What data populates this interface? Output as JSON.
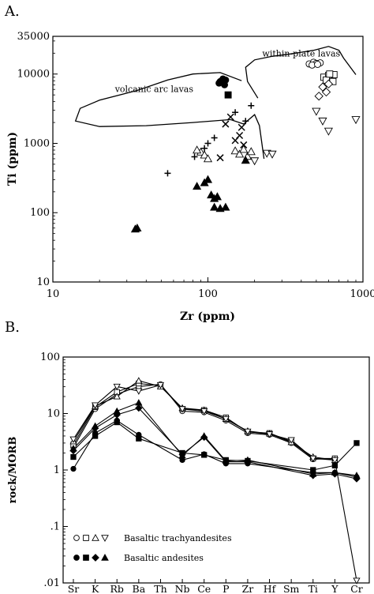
{
  "panels": {
    "a": {
      "label": "A."
    },
    "b": {
      "label": "B."
    }
  },
  "chart_data": [
    {
      "type": "scatter",
      "panel": "A.",
      "xlabel": "Zr (ppm)",
      "ylabel": "Ti (ppm)",
      "xscale": "log",
      "yscale": "log",
      "xlim": [
        10,
        1000
      ],
      "ylim": [
        10,
        35000
      ],
      "xticks": [
        {
          "v": 10,
          "label": "10"
        },
        {
          "v": 100,
          "label": "100"
        },
        {
          "v": 1000,
          "label": "1000"
        }
      ],
      "yticks": [
        {
          "v": 10,
          "label": "10"
        },
        {
          "v": 100,
          "label": "100"
        },
        {
          "v": 1000,
          "label": "1000"
        },
        {
          "v": 10000,
          "label": "10000"
        },
        {
          "v": 35000,
          "label": "35000"
        }
      ],
      "fields": [
        {
          "label": "within-plate lavas",
          "label_at": [
            400,
            18000
          ],
          "boundary": [
            [
              210,
              4500
            ],
            [
              180,
              7800
            ],
            [
              175,
              12500
            ],
            [
              200,
              16000
            ],
            [
              260,
              18000
            ],
            [
              340,
              19500
            ],
            [
              480,
              22000
            ],
            [
              600,
              25000
            ],
            [
              700,
              22000
            ],
            [
              750,
              17000
            ],
            [
              900,
              9800
            ]
          ]
        },
        {
          "label": "volcanic arc lavas",
          "label_at": [
            45,
            5500
          ],
          "boundary": [
            [
              165,
              8000
            ],
            [
              120,
              10500
            ],
            [
              80,
              10000
            ],
            [
              55,
              8200
            ],
            [
              35,
              5800
            ],
            [
              20,
              4200
            ],
            [
              15,
              3200
            ],
            [
              14,
              2100
            ],
            [
              20,
              1750
            ],
            [
              40,
              1800
            ],
            [
              80,
              2000
            ],
            [
              140,
              2200
            ],
            [
              170,
              1900
            ],
            [
              200,
              2600
            ],
            [
              215,
              1800
            ],
            [
              230,
              600
            ]
          ]
        }
      ],
      "series": [
        {
          "marker": "open-circle",
          "points": [
            [
              450,
              14000
            ],
            [
              480,
              14800
            ],
            [
              500,
              14200
            ],
            [
              530,
              14500
            ],
            [
              470,
              13500
            ],
            [
              510,
              13800
            ]
          ]
        },
        {
          "marker": "open-square",
          "points": [
            [
              560,
              9000
            ],
            [
              600,
              9500
            ],
            [
              620,
              8500
            ],
            [
              650,
              9800
            ],
            [
              580,
              8200
            ],
            [
              640,
              7800
            ],
            [
              610,
              10000
            ]
          ]
        },
        {
          "marker": "open-diamond",
          "points": [
            [
              550,
              6500
            ],
            [
              580,
              5500
            ],
            [
              520,
              4800
            ],
            [
              600,
              7200
            ]
          ]
        },
        {
          "marker": "open-triangle-up",
          "points": [
            [
              90,
              750
            ],
            [
              95,
              680
            ],
            [
              85,
              800
            ],
            [
              100,
              600
            ],
            [
              150,
              780
            ],
            [
              160,
              700
            ],
            [
              170,
              820
            ],
            [
              180,
              650
            ],
            [
              190,
              760
            ]
          ]
        },
        {
          "marker": "open-triangle-down",
          "points": [
            [
              500,
              2900
            ],
            [
              550,
              2100
            ],
            [
              600,
              1500
            ],
            [
              900,
              2200
            ],
            [
              240,
              720
            ],
            [
              260,
              700
            ],
            [
              200,
              560
            ]
          ]
        },
        {
          "marker": "plus",
          "points": [
            [
              55,
              370
            ],
            [
              82,
              640
            ],
            [
              95,
              850
            ],
            [
              100,
              1000
            ],
            [
              110,
              1200
            ],
            [
              150,
              2800
            ],
            [
              190,
              3500
            ],
            [
              175,
              2100
            ]
          ]
        },
        {
          "marker": "x",
          "points": [
            [
              130,
              1900
            ],
            [
              140,
              2400
            ],
            [
              150,
              1100
            ],
            [
              160,
              1300
            ],
            [
              120,
              620
            ],
            [
              165,
              1700
            ],
            [
              170,
              950
            ]
          ]
        },
        {
          "marker": "filled-circle",
          "points": [
            [
              120,
              7800
            ],
            [
              125,
              8500
            ],
            [
              130,
              8200
            ],
            [
              118,
              7400
            ],
            [
              128,
              7000
            ]
          ]
        },
        {
          "marker": "filled-square",
          "points": [
            [
              135,
              5000
            ]
          ]
        },
        {
          "marker": "filled-triangle-up",
          "points": [
            [
              85,
              240
            ],
            [
              95,
              270
            ],
            [
              100,
              300
            ],
            [
              110,
              160
            ],
            [
              105,
              180
            ],
            [
              115,
              170
            ],
            [
              120,
              115
            ],
            [
              110,
              120
            ],
            [
              130,
              120
            ],
            [
              35,
              60
            ],
            [
              34,
              58
            ],
            [
              175,
              570
            ]
          ]
        }
      ]
    },
    {
      "type": "line",
      "panel": "B.",
      "ylabel": "rock/MORB",
      "yscale": "log",
      "ylim": [
        0.01,
        100
      ],
      "yticks": [
        {
          "v": 100,
          "label": "100"
        },
        {
          "v": 10,
          "label": "10"
        },
        {
          "v": 1,
          "label": "1"
        },
        {
          "v": 0.1,
          "label": ".1"
        },
        {
          "v": 0.01,
          "label": ".01"
        }
      ],
      "categories": [
        "Sr",
        "K",
        "Rb",
        "Ba",
        "Th",
        "Nb",
        "Ce",
        "P",
        "Zr",
        "Hf",
        "Sm",
        "Ti",
        "Y",
        "Cr"
      ],
      "series": [
        {
          "group": "Basaltic trachyandesites",
          "marker": "open-circle",
          "values": [
            2.5,
            12,
            22,
            30,
            33,
            11,
            10.5,
            7.5,
            4.5,
            4.2,
            3.0,
            1.55,
            1.6,
            null
          ]
        },
        {
          "group": "Basaltic trachyandesites",
          "marker": "open-square",
          "values": [
            2.8,
            13,
            24,
            34,
            31,
            12,
            11.5,
            8.5,
            4.7,
            4.5,
            3.2,
            1.6,
            1.6,
            null
          ]
        },
        {
          "group": "Basaltic trachyandesites",
          "marker": "open-triangle-up",
          "values": [
            3.2,
            13.5,
            20,
            38,
            30,
            12.5,
            11.5,
            8.0,
            4.9,
            4.4,
            3.1,
            1.7,
            1.5,
            null
          ]
        },
        {
          "group": "Basaltic trachyandesites",
          "marker": "open-triangle-down",
          "values": [
            3.5,
            14,
            30,
            25,
            32,
            12,
            11,
            8.0,
            4.8,
            4.3,
            3.4,
            1.6,
            1.5,
            0.011
          ]
        },
        {
          "group": "Basaltic andesites",
          "marker": "filled-circle",
          "values": [
            1.05,
            4.5,
            7.5,
            4.2,
            null,
            1.5,
            1.9,
            1.3,
            1.3,
            null,
            null,
            0.9,
            0.9,
            0.75
          ]
        },
        {
          "group": "Basaltic andesites",
          "marker": "filled-square",
          "values": [
            1.7,
            4.0,
            7.0,
            3.6,
            null,
            2.0,
            1.85,
            1.5,
            1.45,
            null,
            null,
            1.0,
            1.2,
            3.0
          ]
        },
        {
          "group": "Basaltic andesites",
          "marker": "filled-diamond",
          "values": [
            2.2,
            5.5,
            9.5,
            12.5,
            null,
            1.9,
            3.8,
            1.4,
            1.4,
            null,
            null,
            0.8,
            0.85,
            0.7
          ]
        },
        {
          "group": "Basaltic andesites",
          "marker": "filled-triangle-up",
          "values": [
            2.4,
            6.0,
            11.0,
            15.5,
            null,
            1.8,
            4.0,
            1.45,
            1.5,
            null,
            null,
            0.85,
            0.9,
            0.8
          ]
        }
      ],
      "legend": [
        {
          "label": "Basaltic trachyandesites",
          "markers": [
            "open-circle",
            "open-square",
            "open-triangle-up",
            "open-triangle-down"
          ]
        },
        {
          "label": "Basaltic andesites",
          "markers": [
            "filled-circle",
            "filled-square",
            "filled-diamond",
            "filled-triangle-up"
          ]
        }
      ]
    }
  ]
}
